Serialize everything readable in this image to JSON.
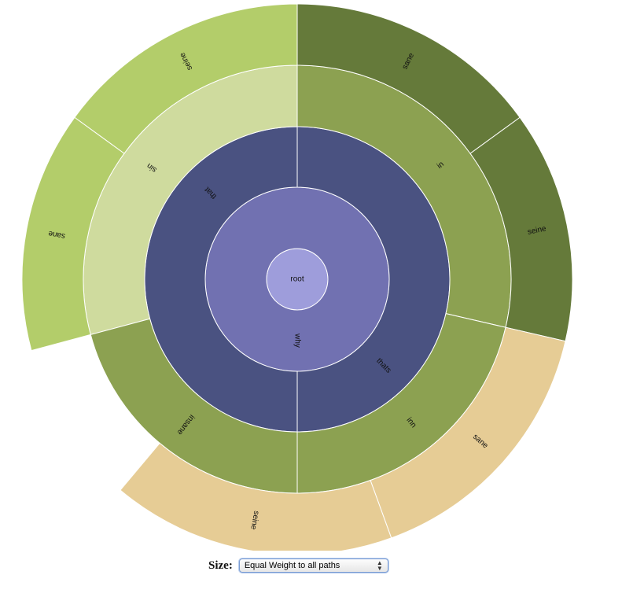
{
  "chart_data": {
    "type": "sunburst",
    "root": {
      "name": "root",
      "children": [
        {
          "name": "why",
          "children": [
            {
              "name": "that",
              "children": [
                {
                  "name": "sin",
                  "children": [
                    {
                      "name": "seine"
                    },
                    {
                      "name": "sane"
                    }
                  ]
                },
                {
                  "name": "insane"
                }
              ]
            },
            {
              "name": "thats",
              "children": [
                {
                  "name": "in",
                  "children": [
                    {
                      "name": "sane"
                    },
                    {
                      "name": "seine"
                    }
                  ]
                },
                {
                  "name": "inn",
                  "children": [
                    {
                      "name": "sane"
                    },
                    {
                      "name": "seine"
                    }
                  ]
                }
              ]
            }
          ]
        }
      ]
    }
  },
  "controls": {
    "size_label": "Size:",
    "size_selected": "Equal Weight to all paths"
  }
}
